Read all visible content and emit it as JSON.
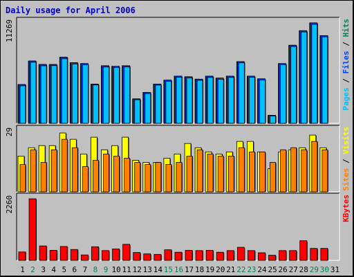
{
  "chart_data": {
    "type": "bar",
    "title": "Daily usage for April 2006",
    "categories": [
      "1",
      "2",
      "3",
      "4",
      "5",
      "6",
      "7",
      "8",
      "9",
      "10",
      "11",
      "12",
      "13",
      "14",
      "15",
      "16",
      "17",
      "18",
      "19",
      "20",
      "21",
      "22",
      "23",
      "24",
      "25",
      "26",
      "27",
      "28",
      "29",
      "30",
      "31"
    ],
    "weekend_days": [
      "2",
      "8",
      "9",
      "15",
      "16",
      "22",
      "23",
      "29",
      "30"
    ],
    "panels": [
      {
        "id": "pages-files-hits",
        "ymax_label": "11269",
        "ymax": 11269,
        "legend": [
          {
            "text": "Pages",
            "color": "#00c0ff"
          },
          {
            "text": " / ",
            "color": "#000000"
          },
          {
            "text": "Files",
            "color": "#0040ff"
          },
          {
            "text": " / ",
            "color": "#000000"
          },
          {
            "text": "Hits",
            "color": "#00805c"
          }
        ],
        "series": [
          {
            "name": "Hits",
            "color": "#00805c",
            "values": [
              4350,
              6990,
              6600,
              6600,
              7430,
              6800,
              6700,
              4400,
              6460,
              6390,
              6460,
              2740,
              3460,
              4400,
              4840,
              5290,
              5220,
              4950,
              5290,
              5070,
              5290,
              6920,
              5290,
              4990,
              900,
              6700,
              8760,
              10390,
              11269,
              9840,
              0
            ]
          },
          {
            "name": "Files",
            "color": "#0040ff",
            "values": [
              4350,
              6990,
              6600,
              6600,
              7430,
              6800,
              6700,
              4400,
              6460,
              6390,
              6460,
              2740,
              3460,
              4400,
              4840,
              5290,
              5220,
              4950,
              5290,
              5070,
              5290,
              6920,
              5290,
              4990,
              900,
              6700,
              8760,
              10390,
              11269,
              9840,
              0
            ]
          },
          {
            "name": "Pages",
            "color": "#00c0ff",
            "values": [
              4200,
              6850,
              6450,
              6470,
              7240,
              6650,
              6560,
              4300,
              6320,
              6250,
              6320,
              2640,
              3340,
              4280,
              4700,
              5160,
              5090,
              4820,
              5150,
              4940,
              5150,
              6780,
              5160,
              4860,
              810,
              6560,
              8620,
              10250,
              11100,
              9700,
              0
            ]
          }
        ]
      },
      {
        "id": "sites-visits",
        "ymax_label": "29",
        "ymax": 29,
        "legend": [
          {
            "text": "Sites",
            "color": "#ff8000"
          },
          {
            "text": " / ",
            "color": "#000000"
          },
          {
            "text": "Visits",
            "color": "#ffff00"
          }
        ],
        "series": [
          {
            "name": "Visits",
            "color": "#ffff00",
            "values": [
              17,
              21,
              22,
              22,
              28,
              25,
              18,
              26,
              20,
              22,
              26,
              15,
              14,
              14,
              16,
              18,
              23,
              21,
              19,
              18,
              19,
              24,
              24,
              19,
              11,
              19,
              20,
              21,
              27,
              21,
              0
            ]
          },
          {
            "name": "Sites",
            "color": "#ff8000",
            "values": [
              13,
              20,
              14,
              20,
              25,
              21,
              12,
              15,
              18,
              17,
              16,
              14,
              13,
              14,
              13,
              14,
              17,
              20,
              18,
              17,
              17,
              21,
              19,
              19,
              14,
              20,
              21,
              20,
              24,
              20,
              0
            ]
          }
        ]
      },
      {
        "id": "kbytes",
        "ymax_label": "2260",
        "ymax": 2260,
        "legend": [
          {
            "text": "KBytes",
            "color": "#ff0000"
          }
        ],
        "series": [
          {
            "name": "KBytes",
            "color": "#ff0000",
            "values": [
              310,
              2260,
              530,
              370,
              510,
              400,
              200,
              500,
              360,
              420,
              590,
              290,
              240,
              220,
              390,
              300,
              370,
              360,
              370,
              300,
              360,
              480,
              360,
              280,
              190,
              360,
              360,
              720,
              440,
              440,
              0
            ]
          }
        ]
      }
    ],
    "axis_label_colors": {
      "weekday": "#000000",
      "weekend": "#00805c"
    }
  }
}
